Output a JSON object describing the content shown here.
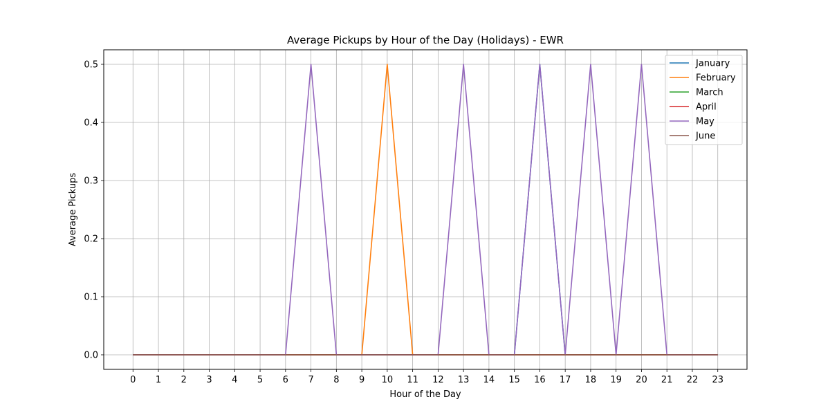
{
  "chart_data": {
    "type": "line",
    "title": "Average Pickups by Hour of the Day (Holidays) - EWR",
    "xlabel": "Hour of the Day",
    "ylabel": "Average Pickups",
    "x": [
      0,
      1,
      2,
      3,
      4,
      5,
      6,
      7,
      8,
      9,
      10,
      11,
      12,
      13,
      14,
      15,
      16,
      17,
      18,
      19,
      20,
      21,
      22,
      23
    ],
    "x_tick_labels": [
      "0",
      "1",
      "2",
      "3",
      "4",
      "5",
      "6",
      "7",
      "8",
      "9",
      "10",
      "11",
      "12",
      "13",
      "14",
      "15",
      "16",
      "17",
      "18",
      "19",
      "20",
      "21",
      "22",
      "23"
    ],
    "xlim": [
      -1.15,
      24.15
    ],
    "ylim": [
      -0.025,
      0.525
    ],
    "y_ticks": [
      0.0,
      0.1,
      0.2,
      0.3,
      0.4,
      0.5
    ],
    "y_tick_labels": [
      "0.0",
      "0.1",
      "0.2",
      "0.3",
      "0.4",
      "0.5"
    ],
    "grid": true,
    "legend_position": "top-right",
    "series": [
      {
        "name": "January",
        "color": "#1f77b4",
        "values": [
          0,
          0,
          0,
          0,
          0,
          0,
          0,
          0,
          0,
          0,
          0,
          0,
          0,
          0,
          0,
          0,
          0.5,
          0,
          0,
          0,
          0,
          0,
          0,
          0
        ]
      },
      {
        "name": "February",
        "color": "#ff7f0e",
        "values": [
          0,
          0,
          0,
          0,
          0,
          0,
          0,
          0,
          0,
          0,
          0.5,
          0,
          0,
          0,
          0,
          0,
          0,
          0,
          0,
          0,
          0,
          0,
          0,
          0
        ]
      },
      {
        "name": "March",
        "color": "#2ca02c",
        "values": [
          0,
          0,
          0,
          0,
          0,
          0,
          0,
          0,
          0,
          0,
          0,
          0,
          0,
          0,
          0,
          0,
          0,
          0,
          0,
          0,
          0,
          0,
          0,
          0
        ]
      },
      {
        "name": "April",
        "color": "#d62728",
        "values": [
          0,
          0,
          0,
          0,
          0,
          0,
          0,
          0,
          0,
          0,
          0,
          0,
          0,
          0,
          0,
          0,
          0,
          0,
          0,
          0,
          0,
          0,
          0,
          0
        ]
      },
      {
        "name": "May",
        "color": "#9467bd",
        "values": [
          0,
          0,
          0,
          0,
          0,
          0,
          0,
          0.5,
          0,
          0,
          0,
          0,
          0,
          0.5,
          0,
          0,
          0.5,
          0,
          0.5,
          0,
          0.5,
          0,
          0,
          0
        ]
      },
      {
        "name": "June",
        "color": "#8c564b",
        "values": [
          0,
          0,
          0,
          0,
          0,
          0,
          0,
          0,
          0,
          0,
          0,
          0,
          0,
          0,
          0,
          0,
          0,
          0,
          0,
          0,
          0,
          0,
          0,
          0
        ]
      }
    ]
  }
}
